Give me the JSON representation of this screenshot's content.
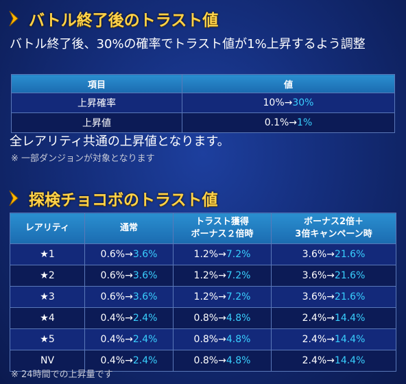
{
  "section1": {
    "title": "バトル終了後のトラスト値",
    "description": "バトル終了後、30%の確率でトラスト値が1%上昇するよう調整",
    "table": {
      "headers": [
        "項目",
        "値"
      ],
      "rows": [
        {
          "label": "上昇確率",
          "from": "10%→",
          "to": "30%"
        },
        {
          "label": "上昇値",
          "from": "0.1%→",
          "to": "1%"
        }
      ]
    },
    "footer": "全レアリティ共通の上昇値となります。",
    "note": "※ 一部ダンジョンが対象となります"
  },
  "section2": {
    "title": "探検チョコボのトラスト値",
    "table": {
      "headers": {
        "rarity": "レアリティ",
        "normal": "通常",
        "bonus_line1": "トラスト獲得",
        "bonus_line2": "ボーナス２倍時",
        "campaign_line1": "ボーナス2倍＋",
        "campaign_line2": "3倍キャンペーン時"
      },
      "rows": [
        {
          "rarity": "★1",
          "normal_from": "0.6%→",
          "normal_to": "3.6%",
          "bonus_from": "1.2%→",
          "bonus_to": "7.2%",
          "campaign_from": "3.6%→",
          "campaign_to": "21.6%"
        },
        {
          "rarity": "★2",
          "normal_from": "0.6%→",
          "normal_to": "3.6%",
          "bonus_from": "1.2%→",
          "bonus_to": "7.2%",
          "campaign_from": "3.6%→",
          "campaign_to": "21.6%"
        },
        {
          "rarity": "★3",
          "normal_from": "0.6%→",
          "normal_to": "3.6%",
          "bonus_from": "1.2%→",
          "bonus_to": "7.2%",
          "campaign_from": "3.6%→",
          "campaign_to": "21.6%"
        },
        {
          "rarity": "★4",
          "normal_from": "0.4%→",
          "normal_to": "2.4%",
          "bonus_from": "0.8%→",
          "bonus_to": "4.8%",
          "campaign_from": "2.4%→",
          "campaign_to": "14.4%"
        },
        {
          "rarity": "★5",
          "normal_from": "0.4%→",
          "normal_to": "2.4%",
          "bonus_from": "0.8%→",
          "bonus_to": "4.8%",
          "campaign_from": "2.4%→",
          "campaign_to": "14.4%"
        },
        {
          "rarity": "NV",
          "normal_from": "0.4%→",
          "normal_to": "2.4%",
          "bonus_from": "0.8%→",
          "bonus_to": "4.8%",
          "campaign_from": "2.4%→",
          "campaign_to": "14.4%"
        }
      ]
    },
    "note": "※ 24時間での上昇量です"
  },
  "icons": {
    "section_marker": "chevron-right-icon"
  },
  "colors": {
    "title": "#ffd24a",
    "highlight": "#39d0ff",
    "header_bg": "#2a8fd0",
    "row_odd": "#13297a",
    "row_even": "#0c1b56"
  }
}
